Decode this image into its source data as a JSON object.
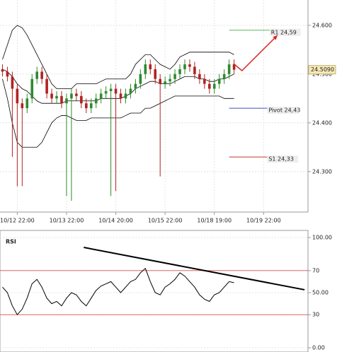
{
  "chart_data": [
    {
      "type": "candlestick",
      "x": [
        0,
        1,
        2,
        3,
        4,
        5,
        6,
        7,
        8,
        9,
        10,
        11,
        12,
        13,
        14,
        15,
        16,
        17,
        18,
        19,
        20,
        21,
        22,
        23,
        24,
        25,
        26,
        27,
        28,
        29,
        30,
        31,
        32,
        33,
        34,
        35,
        36,
        37,
        38,
        39,
        40,
        41,
        42,
        43,
        44,
        45,
        46,
        47
      ],
      "open": [
        24.51,
        24.505,
        24.495,
        24.47,
        24.44,
        24.43,
        24.45,
        24.49,
        24.505,
        24.49,
        24.46,
        24.45,
        24.455,
        24.44,
        24.45,
        24.46,
        24.455,
        24.44,
        24.43,
        24.44,
        24.45,
        24.46,
        24.465,
        24.47,
        24.46,
        24.45,
        24.46,
        24.47,
        24.48,
        24.5,
        24.52,
        24.51,
        24.49,
        24.48,
        24.485,
        24.49,
        24.5,
        24.51,
        24.52,
        24.515,
        24.5,
        24.49,
        24.48,
        24.47,
        24.48,
        24.49,
        24.5,
        24.52
      ],
      "high": [
        24.52,
        24.515,
        24.505,
        24.48,
        24.45,
        24.46,
        24.5,
        24.515,
        24.515,
        24.5,
        24.47,
        24.465,
        24.465,
        24.46,
        24.47,
        24.47,
        24.465,
        24.45,
        24.45,
        24.46,
        24.47,
        24.475,
        24.48,
        24.48,
        24.47,
        24.47,
        24.48,
        24.49,
        24.51,
        24.53,
        24.53,
        24.52,
        24.5,
        24.495,
        24.5,
        24.51,
        24.52,
        24.53,
        24.53,
        24.525,
        24.51,
        24.5,
        24.49,
        24.49,
        24.5,
        24.51,
        24.53,
        24.53
      ],
      "low": [
        24.495,
        24.485,
        24.33,
        24.27,
        24.27,
        24.42,
        24.44,
        24.48,
        24.48,
        24.45,
        24.44,
        24.44,
        24.43,
        24.25,
        24.24,
        24.445,
        24.43,
        24.42,
        24.42,
        24.43,
        24.44,
        24.45,
        24.25,
        24.26,
        24.44,
        24.44,
        24.45,
        24.46,
        24.47,
        24.49,
        24.5,
        24.48,
        24.29,
        24.47,
        24.475,
        24.48,
        24.49,
        24.5,
        24.505,
        24.49,
        24.48,
        24.47,
        24.46,
        24.46,
        24.47,
        24.48,
        24.49,
        24.5
      ],
      "close": [
        24.505,
        24.495,
        24.47,
        24.44,
        24.43,
        24.45,
        24.49,
        24.505,
        24.49,
        24.46,
        24.45,
        24.455,
        24.44,
        24.45,
        24.46,
        24.455,
        24.44,
        24.43,
        24.44,
        24.45,
        24.46,
        24.465,
        24.47,
        24.46,
        24.45,
        24.46,
        24.47,
        24.48,
        24.5,
        24.52,
        24.51,
        24.49,
        24.48,
        24.485,
        24.49,
        24.5,
        24.51,
        24.52,
        24.515,
        24.5,
        24.49,
        24.48,
        24.47,
        24.48,
        24.49,
        24.5,
        24.52,
        24.509
      ],
      "up_color": "#2e8b2e",
      "down_color": "#b22222",
      "bands": {
        "color": "#000000",
        "upper": [
          24.53,
          24.56,
          24.59,
          24.6,
          24.595,
          24.58,
          24.56,
          24.54,
          24.52,
          24.5,
          24.48,
          24.47,
          24.47,
          24.47,
          24.47,
          24.48,
          24.48,
          24.48,
          24.48,
          24.48,
          24.485,
          24.49,
          24.49,
          24.49,
          24.49,
          24.49,
          24.5,
          24.52,
          24.53,
          24.54,
          24.54,
          24.53,
          24.52,
          24.515,
          24.51,
          24.52,
          24.535,
          24.54,
          24.545,
          24.545,
          24.545,
          24.545,
          24.545,
          24.545,
          24.545,
          24.545,
          24.545,
          24.54
        ],
        "middle": [
          24.51,
          24.505,
          24.495,
          24.48,
          24.47,
          24.465,
          24.455,
          24.445,
          24.44,
          24.44,
          24.44,
          24.44,
          24.44,
          24.445,
          24.445,
          24.445,
          24.445,
          24.445,
          24.445,
          24.445,
          24.45,
          24.45,
          24.45,
          24.45,
          24.45,
          24.455,
          24.46,
          24.47,
          24.475,
          24.48,
          24.485,
          24.485,
          24.48,
          24.48,
          24.48,
          24.485,
          24.49,
          24.495,
          24.495,
          24.495,
          24.49,
          24.49,
          24.485,
          24.485,
          24.49,
          24.49,
          24.495,
          24.5
        ],
        "lower": [
          24.49,
          24.45,
          24.4,
          24.36,
          24.35,
          24.35,
          24.35,
          24.35,
          24.36,
          24.38,
          24.4,
          24.41,
          24.415,
          24.415,
          24.41,
          24.405,
          24.405,
          24.405,
          24.41,
          24.41,
          24.41,
          24.41,
          24.41,
          24.41,
          24.41,
          24.415,
          24.42,
          24.42,
          24.42,
          24.43,
          24.43,
          24.435,
          24.44,
          24.445,
          24.45,
          24.455,
          24.455,
          24.455,
          24.455,
          24.455,
          24.455,
          24.455,
          24.455,
          24.455,
          24.455,
          24.45,
          24.45,
          24.45
        ]
      },
      "levels": [
        {
          "label": "R1 24,59",
          "value": 24.59,
          "color": "#5cb85c",
          "x": [
            46,
            54.5
          ]
        },
        {
          "label": "Pivot 24,43",
          "value": 24.43,
          "color": "#3b4dbf",
          "x": [
            46,
            54
          ]
        },
        {
          "label": "S1 24,33",
          "value": 24.33,
          "color": "#c0392b",
          "x": [
            46,
            54
          ]
        }
      ],
      "last_price": {
        "value": 24.509,
        "label": "24.5090"
      },
      "projection": {
        "color": "#dd2222",
        "x": [
          46.9,
          48.6,
          55.8
        ],
        "y": [
          24.5216,
          24.507,
          24.5795
        ]
      },
      "xlim": [
        -0.5,
        62
      ],
      "ylim": [
        24.217,
        24.652
      ],
      "xticks": [
        {
          "value": 3,
          "label": "10/12 22:00"
        },
        {
          "value": 13,
          "label": "10/13 22:00"
        },
        {
          "value": 23,
          "label": "10/14 20:00"
        },
        {
          "value": 33,
          "label": "10/15 22:00"
        },
        {
          "value": 43,
          "label": "10/18 19:00"
        },
        {
          "value": 53,
          "label": "10/19 22:00"
        }
      ],
      "yticks": [
        {
          "value": 24.3,
          "label": "24.300"
        },
        {
          "value": 24.4,
          "label": "24.400"
        },
        {
          "value": 24.5,
          "label": "24.500"
        },
        {
          "value": 24.6,
          "label": "24.600"
        }
      ],
      "grid": true
    },
    {
      "type": "line",
      "title": "RSI",
      "x": [
        0,
        1,
        2,
        3,
        4,
        5,
        6,
        7,
        8,
        9,
        10,
        11,
        12,
        13,
        14,
        15,
        16,
        17,
        18,
        19,
        20,
        21,
        22,
        23,
        24,
        25,
        26,
        27,
        28,
        29,
        30,
        31,
        32,
        33,
        34,
        35,
        36,
        37,
        38,
        39,
        40,
        41,
        42,
        43,
        44,
        45,
        46,
        47
      ],
      "values": [
        55,
        50,
        38,
        30,
        35,
        45,
        58,
        62,
        55,
        45,
        40,
        42,
        38,
        45,
        50,
        48,
        42,
        38,
        45,
        52,
        56,
        58,
        60,
        55,
        50,
        55,
        60,
        62,
        68,
        72,
        60,
        50,
        48,
        55,
        58,
        62,
        68,
        65,
        60,
        55,
        48,
        44,
        42,
        48,
        50,
        55,
        60,
        59
      ],
      "color": "#000000",
      "levels": [
        {
          "value": 70,
          "color": "#d9534f"
        },
        {
          "value": 30,
          "color": "#d9534f"
        }
      ],
      "trendline": {
        "color": "#000000",
        "x": [
          16.5,
          61.3
        ],
        "y": [
          91,
          52.6
        ]
      },
      "xlim": [
        -0.5,
        62
      ],
      "ylim": [
        0,
        100
      ],
      "yticks": [
        {
          "value": 0,
          "label": "0.00"
        },
        30,
        {
          "value": 50,
          "label": "50.00"
        },
        70,
        {
          "value": 100,
          "label": "100.00"
        }
      ],
      "grid": true
    }
  ]
}
